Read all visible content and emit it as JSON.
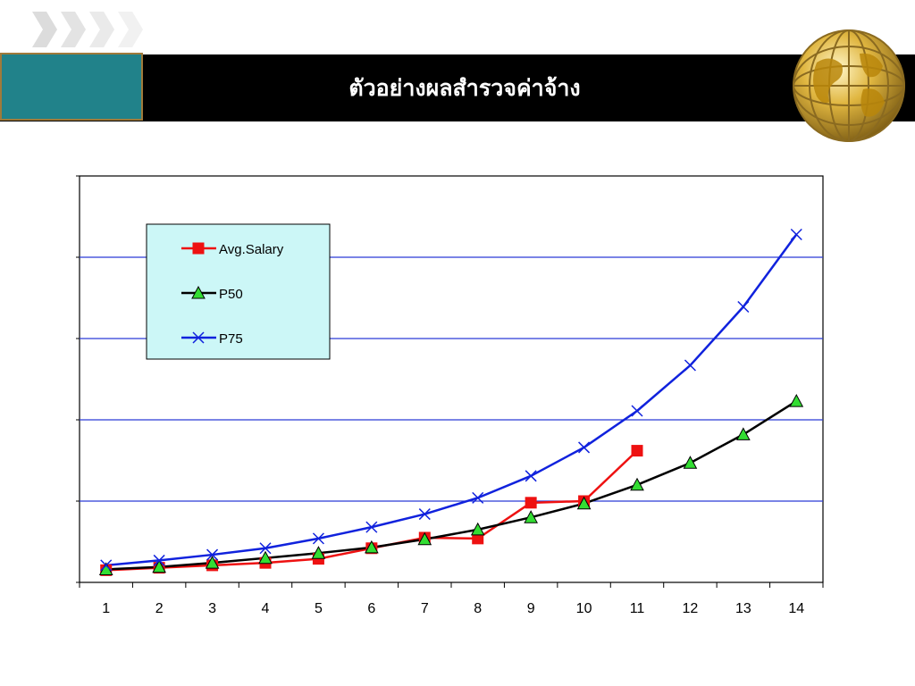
{
  "slide": {
    "title": "ตัวอย่างผลสำรวจค่าจ้าง"
  },
  "colors": {
    "header_bg": "#000000",
    "teal_box": "#21828a",
    "legend_bg": "#ccf7f7",
    "gridline": "#2b3bd6"
  },
  "icons": [
    "chevron-arrows-icon",
    "globe-icon"
  ],
  "chart_data": {
    "type": "line",
    "title": "",
    "xlabel": "",
    "ylabel": "",
    "x": [
      1,
      2,
      3,
      4,
      5,
      6,
      7,
      8,
      9,
      10,
      11,
      12,
      13,
      14
    ],
    "ylim": [
      0,
      5
    ],
    "yticks": [
      0,
      1,
      2,
      3,
      4,
      5
    ],
    "ytick_labels_legible": false,
    "grid": "horizontal",
    "legend_position": "top-left",
    "series": [
      {
        "name": "Avg.Salary",
        "color": "#ee1111",
        "marker": "square",
        "values": [
          0.15,
          0.18,
          0.21,
          0.24,
          0.29,
          0.42,
          0.55,
          0.54,
          0.98,
          1.0,
          1.62,
          null,
          null,
          null
        ]
      },
      {
        "name": "P50",
        "color": "#000000",
        "marker": "triangle",
        "values": [
          0.16,
          0.19,
          0.24,
          0.3,
          0.36,
          0.43,
          0.53,
          0.65,
          0.8,
          0.97,
          1.2,
          1.47,
          1.82,
          2.23
        ]
      },
      {
        "name": "P75",
        "color": "#1022dd",
        "marker": "x",
        "values": [
          0.21,
          0.27,
          0.34,
          0.42,
          0.54,
          0.68,
          0.84,
          1.04,
          1.31,
          1.66,
          2.11,
          2.67,
          3.39,
          4.28
        ]
      }
    ]
  }
}
